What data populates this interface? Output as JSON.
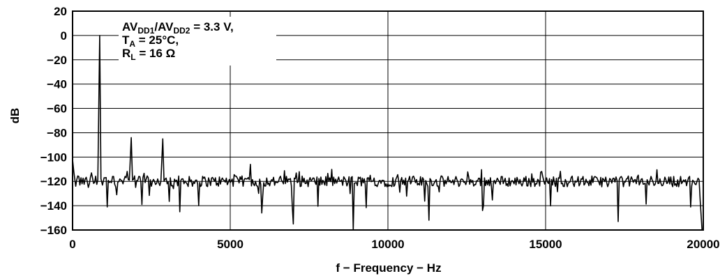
{
  "chart_data": {
    "type": "line",
    "xlabel": "f − Frequency − Hz",
    "ylabel": "dB",
    "xlim": [
      0,
      20000
    ],
    "ylim": [
      -160,
      20
    ],
    "xticks": [
      0,
      5000,
      10000,
      15000,
      20000
    ],
    "xtick_labels": [
      "0",
      "5000",
      "10000",
      "15000",
      "20000"
    ],
    "yticks": [
      20,
      0,
      -20,
      -40,
      -60,
      -80,
      -100,
      -120,
      -140,
      -160
    ],
    "ytick_labels": [
      "20",
      "0",
      "−20",
      "−40",
      "−60",
      "−80",
      "−100",
      "−120",
      "−140",
      "−160"
    ],
    "grid": true,
    "annotation": {
      "line1": {
        "a": "AV",
        "a_sub": "DD1",
        "b": "/AV",
        "b_sub": "DD2",
        "c": " = 3.3 V,"
      },
      "line2": {
        "a": "T",
        "a_sub": "A",
        "c": " = 25°C,"
      },
      "line3": {
        "a": "R",
        "a_sub": "L",
        "c": " = 16 Ω"
      }
    },
    "noise_floor_db": -120,
    "series": [
      {
        "values": {
          "x": [
            0,
            40,
            100,
            200,
            300,
            400,
            500,
            600,
            700,
            800,
            860,
            900,
            950,
            1000,
            1100,
            1200,
            1300,
            1400,
            1500,
            1600,
            1700,
            1800,
            1860,
            1900,
            2000,
            2100,
            2200,
            2300,
            2400,
            2500,
            2600,
            2700,
            2800,
            2860,
            2900,
            3000,
            3100,
            3200,
            3300,
            3400,
            3500,
            3600,
            3700,
            3800,
            3900,
            4000,
            4500,
            5000,
            5500,
            5640,
            5800,
            6000,
            6500,
            7000,
            7500,
            8000,
            8500,
            8800,
            8900,
            9000,
            9500,
            10000,
            10500,
            11000,
            11300,
            11500,
            12000,
            12500,
            13000,
            13500,
            14000,
            14500,
            15000,
            15500,
            16000,
            16500,
            17000,
            17300,
            17500,
            18000,
            18500,
            19000,
            19500,
            19800,
            19900,
            19960,
            20000
          ],
          "y": [
            -102,
            -112,
            -124,
            -116,
            -122,
            -118,
            -125,
            -113,
            -121,
            -119,
            0,
            -118,
            -123,
            -117,
            -141,
            -120,
            -116,
            -131,
            -118,
            -122,
            -117,
            -119,
            -84,
            -119,
            -125,
            -116,
            -139,
            -121,
            -117,
            -124,
            -120,
            -118,
            -120,
            -85,
            -120,
            -122,
            -117,
            -126,
            -119,
            -145,
            -118,
            -121,
            -116,
            -124,
            -119,
            -140,
            -120,
            -121,
            -118,
            -106,
            -120,
            -146,
            -121,
            -155,
            -119,
            -123,
            -120,
            -130,
            -160,
            -121,
            -120,
            -122,
            -119,
            -123,
            -152,
            -120,
            -121,
            -120,
            -144,
            -119,
            -122,
            -121,
            -120,
            -122,
            -120,
            -121,
            -122,
            -153,
            -120,
            -121,
            -120,
            -122,
            -120,
            -120,
            -135,
            -160,
            -160
          ]
        }
      }
    ]
  }
}
